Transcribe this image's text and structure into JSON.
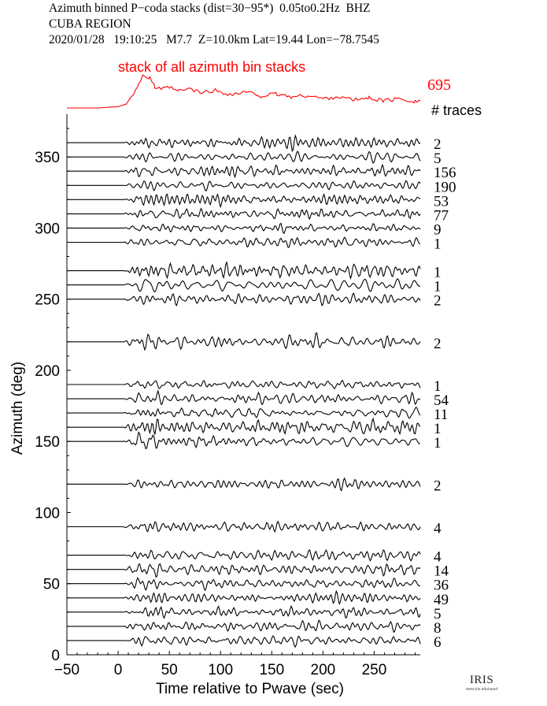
{
  "header": {
    "line1": "Azimuth binned P−coda stacks (dist=30−95*)  0.05to0.2Hz  BHZ",
    "line2": "CUBA REGION",
    "line3": "2020/01/28   19:10:25   M7.7  Z=10.0km Lat=19.44 Lon=−78.7545"
  },
  "colors": {
    "stack": "#ff0000",
    "trace": "#000000",
    "axis": "#000000"
  },
  "logo": {
    "main": "IRIS",
    "sub": "www.iris.edu/spud"
  },
  "chart_data": {
    "type": "line",
    "title": "Azimuth binned P−coda stacks (dist=30−95*)  0.05to0.2Hz  BHZ",
    "xlabel": "Time relative to Pwave (sec)",
    "ylabel": "Azimuth (deg)",
    "xlim": [
      -50,
      295
    ],
    "ylim": [
      0,
      380
    ],
    "xticks": [
      -50,
      0,
      50,
      100,
      150,
      200,
      250
    ],
    "xtick_labels": [
      "−50",
      "0",
      "50",
      "100",
      "150",
      "200",
      "250"
    ],
    "yticks": [
      0,
      50,
      100,
      150,
      200,
      250,
      300,
      350
    ],
    "stack": {
      "label": "stack of all azimuth bin stacks",
      "total_traces": "695",
      "points": [
        [
          -50,
          0
        ],
        [
          -20,
          0
        ],
        [
          0,
          0.04
        ],
        [
          8,
          0.12
        ],
        [
          15,
          0.45
        ],
        [
          20,
          0.7
        ],
        [
          24,
          1.0
        ],
        [
          28,
          0.85
        ],
        [
          31,
          0.95
        ],
        [
          36,
          0.62
        ],
        [
          42,
          0.55
        ],
        [
          50,
          0.63
        ],
        [
          58,
          0.5
        ],
        [
          70,
          0.58
        ],
        [
          80,
          0.46
        ],
        [
          95,
          0.53
        ],
        [
          110,
          0.4
        ],
        [
          125,
          0.48
        ],
        [
          140,
          0.36
        ],
        [
          155,
          0.42
        ],
        [
          170,
          0.33
        ],
        [
          185,
          0.38
        ],
        [
          200,
          0.28
        ],
        [
          215,
          0.34
        ],
        [
          230,
          0.24
        ],
        [
          245,
          0.3
        ],
        [
          260,
          0.22
        ],
        [
          275,
          0.28
        ],
        [
          290,
          0.2
        ],
        [
          295,
          0.22
        ]
      ]
    },
    "traces_header": "# traces",
    "series": [
      {
        "azimuth": 360,
        "traces": "2",
        "seed": 1,
        "amp": 1.0
      },
      {
        "azimuth": 350,
        "traces": "5",
        "seed": 2,
        "amp": 1.0
      },
      {
        "azimuth": 340,
        "traces": "156",
        "seed": 3,
        "amp": 1.0
      },
      {
        "azimuth": 330,
        "traces": "190",
        "seed": 4,
        "amp": 0.9
      },
      {
        "azimuth": 320,
        "traces": "53",
        "seed": 5,
        "amp": 1.0
      },
      {
        "azimuth": 310,
        "traces": "77",
        "seed": 6,
        "amp": 0.9
      },
      {
        "azimuth": 300,
        "traces": "9",
        "seed": 7,
        "amp": 1.0
      },
      {
        "azimuth": 290,
        "traces": "1",
        "seed": 8,
        "amp": 1.1
      },
      {
        "azimuth": 270,
        "traces": "1",
        "seed": 9,
        "amp": 1.3
      },
      {
        "azimuth": 260,
        "traces": "1",
        "seed": 10,
        "amp": 1.3
      },
      {
        "azimuth": 250,
        "traces": "2",
        "seed": 11,
        "amp": 1.1
      },
      {
        "azimuth": 220,
        "traces": "2",
        "seed": 12,
        "amp": 1.2
      },
      {
        "azimuth": 190,
        "traces": "1",
        "seed": 13,
        "amp": 1.1
      },
      {
        "azimuth": 180,
        "traces": "54",
        "seed": 14,
        "amp": 0.9
      },
      {
        "azimuth": 170,
        "traces": "11",
        "seed": 15,
        "amp": 1.0
      },
      {
        "azimuth": 160,
        "traces": "1",
        "seed": 16,
        "amp": 1.4
      },
      {
        "azimuth": 150,
        "traces": "1",
        "seed": 17,
        "amp": 1.3
      },
      {
        "azimuth": 120,
        "traces": "2",
        "seed": 18,
        "amp": 0.9
      },
      {
        "azimuth": 90,
        "traces": "4",
        "seed": 19,
        "amp": 1.0
      },
      {
        "azimuth": 70,
        "traces": "4",
        "seed": 20,
        "amp": 1.1
      },
      {
        "azimuth": 60,
        "traces": "14",
        "seed": 21,
        "amp": 1.0
      },
      {
        "azimuth": 50,
        "traces": "36",
        "seed": 22,
        "amp": 1.0
      },
      {
        "azimuth": 40,
        "traces": "49",
        "seed": 23,
        "amp": 1.0
      },
      {
        "azimuth": 30,
        "traces": "5",
        "seed": 24,
        "amp": 1.0
      },
      {
        "azimuth": 20,
        "traces": "8",
        "seed": 25,
        "amp": 1.0
      },
      {
        "azimuth": 10,
        "traces": "6",
        "seed": 26,
        "amp": 1.0
      }
    ]
  }
}
